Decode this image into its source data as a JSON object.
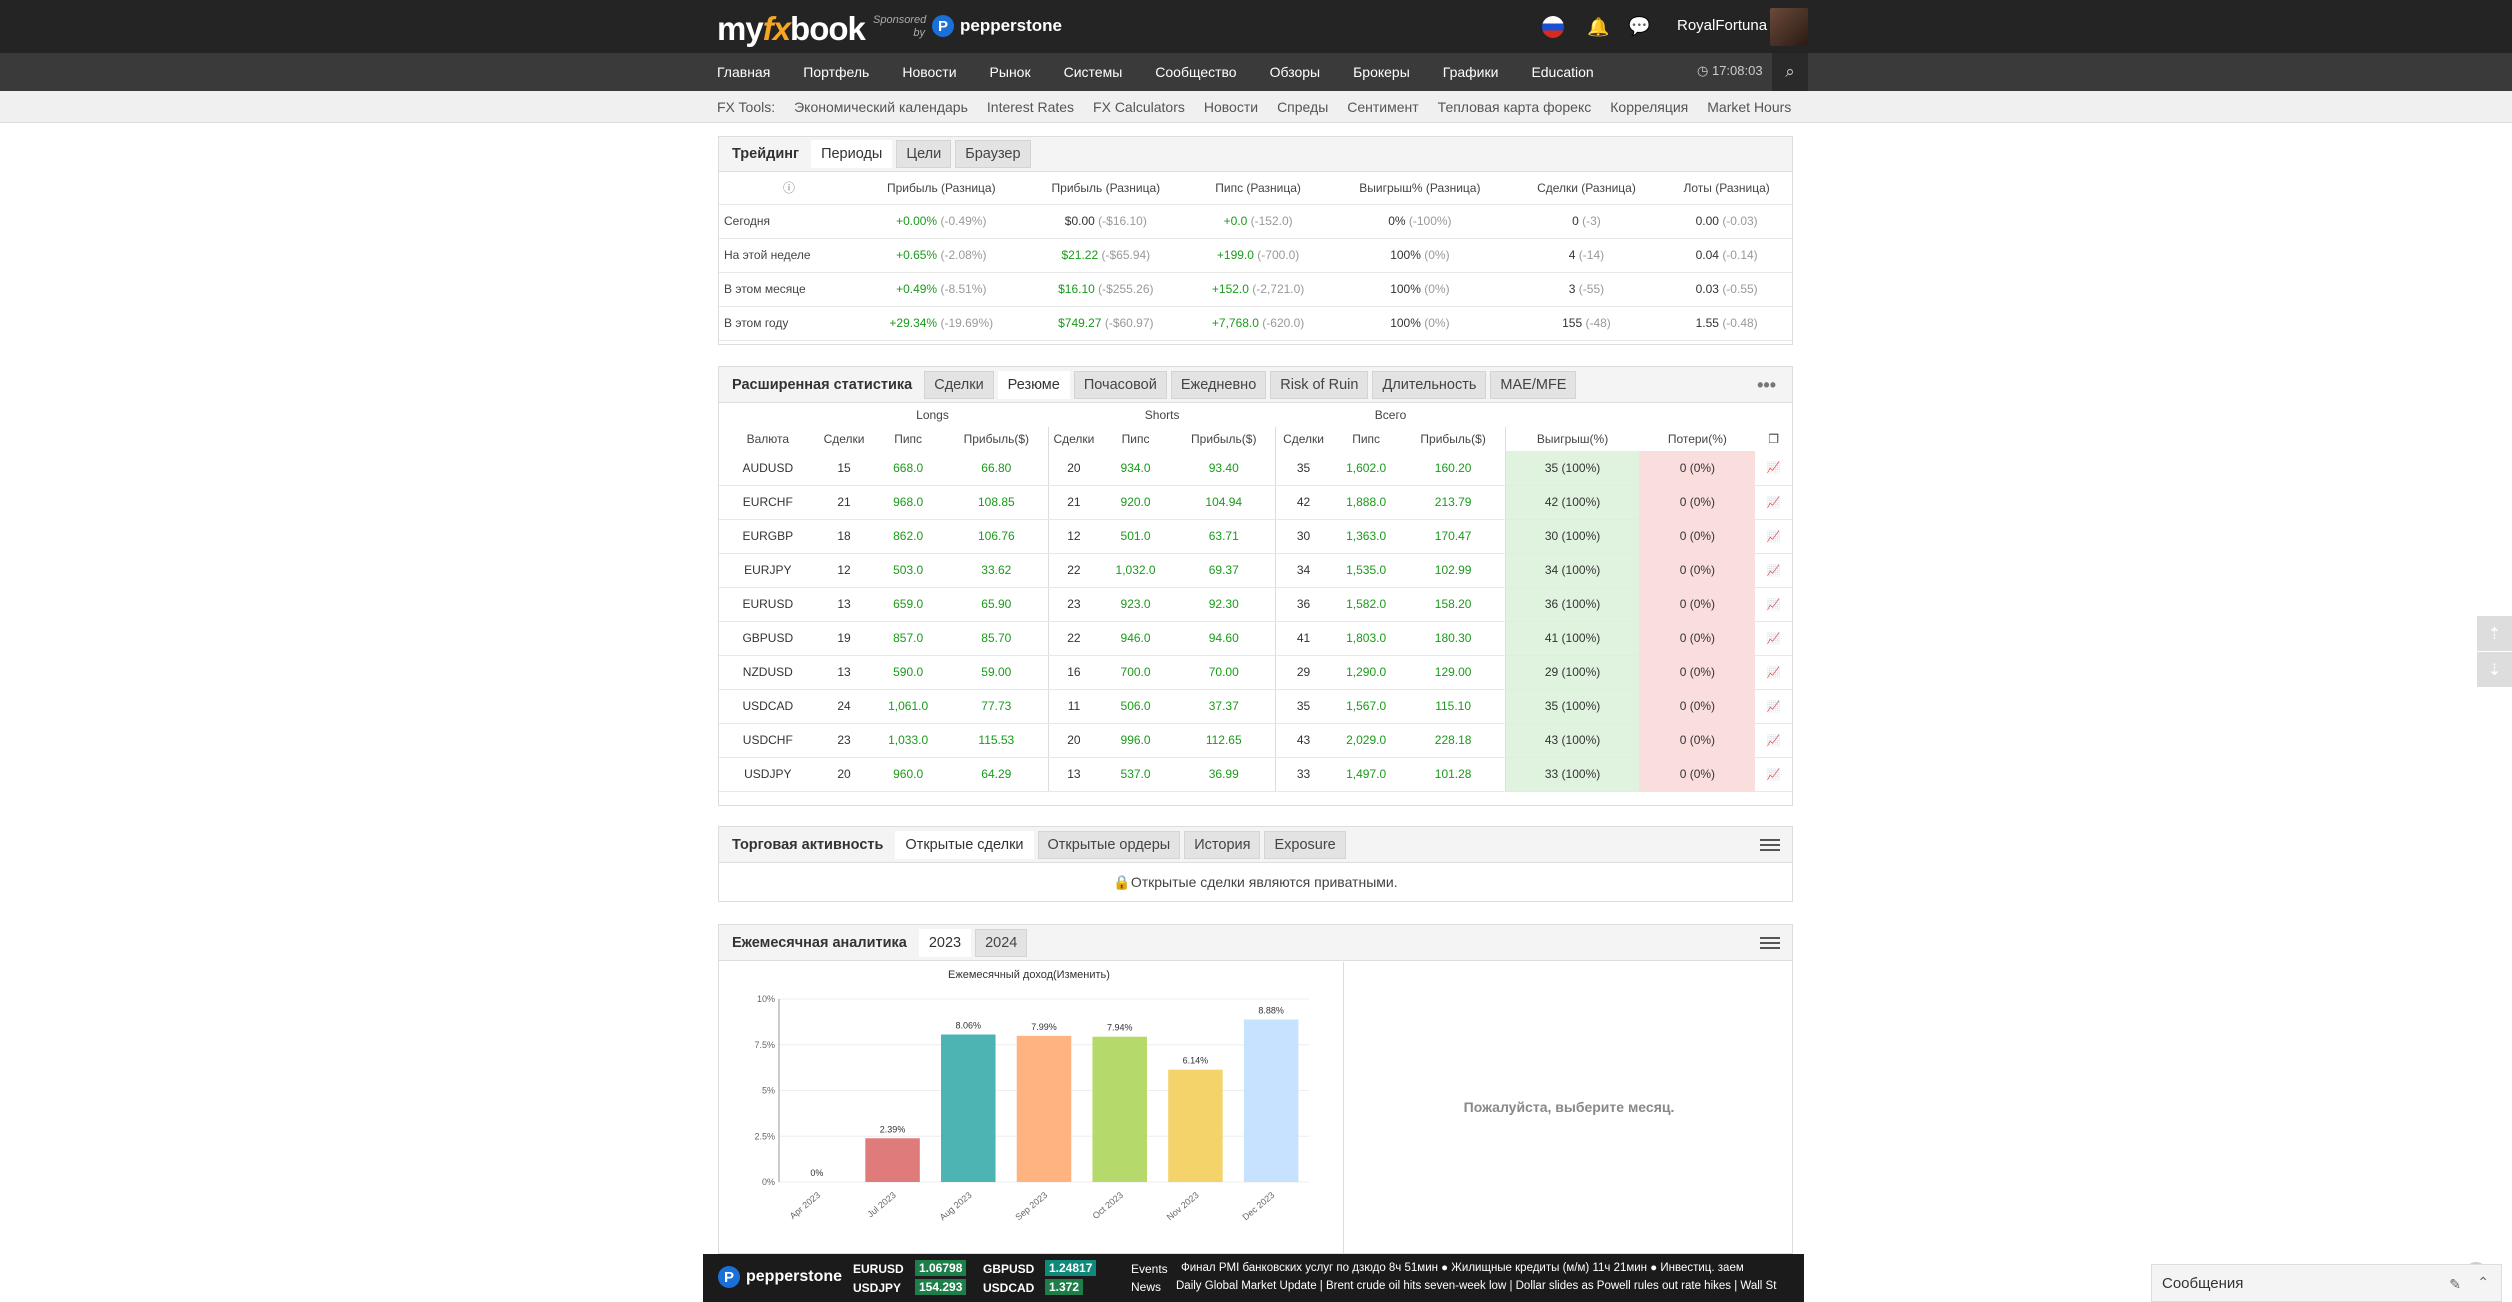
{
  "header": {
    "logo_my": "my",
    "logo_fx": "fx",
    "logo_book": "book",
    "sponsored": "Sponsored by",
    "sponsor": "pepperstone",
    "user": "RoyalFortuna",
    "clock": "17:08:03"
  },
  "nav": [
    "Главная",
    "Портфель",
    "Новости",
    "Рынок",
    "Системы",
    "Сообщество",
    "Обзоры",
    "Брокеры",
    "Графики",
    "Education"
  ],
  "tools": {
    "label": "FX Tools:",
    "items": [
      "Экономический календарь",
      "Interest Rates",
      "FX Calculators",
      "Новости",
      "Спреды",
      "Сентимент",
      "Тепловая карта форекс",
      "Корреляция",
      "Market Hours"
    ]
  },
  "trading": {
    "title": "Трейдинг",
    "tabs": [
      "Периоды",
      "Цели",
      "Браузер"
    ],
    "columns": [
      "Прибыль (Разница)",
      "Прибыль (Разница)",
      "Пипс (Разница)",
      "Выигрыш% (Разница)",
      "Сделки (Разница)",
      "Лоты (Разница)"
    ],
    "rows": [
      {
        "label": "Сегодня",
        "c": [
          [
            "+0.00%",
            "(-0.49%)"
          ],
          [
            "$0.00",
            "(-$16.10)"
          ],
          [
            "+0.0",
            "(-152.0)"
          ],
          [
            "0%",
            "(-100%)"
          ],
          [
            "0",
            "(-3)"
          ],
          [
            "0.00",
            "(-0.03)"
          ]
        ],
        "green": [
          1,
          0,
          1,
          0,
          0,
          0
        ]
      },
      {
        "label": "На этой неделе",
        "c": [
          [
            "+0.65%",
            "(-2.08%)"
          ],
          [
            "$21.22",
            "(-$65.94)"
          ],
          [
            "+199.0",
            "(-700.0)"
          ],
          [
            "100%",
            "(0%)"
          ],
          [
            "4",
            "(-14)"
          ],
          [
            "0.04",
            "(-0.14)"
          ]
        ],
        "green": [
          1,
          1,
          1,
          0,
          0,
          0
        ]
      },
      {
        "label": "В этом месяце",
        "c": [
          [
            "+0.49%",
            "(-8.51%)"
          ],
          [
            "$16.10",
            "(-$255.26)"
          ],
          [
            "+152.0",
            "(-2,721.0)"
          ],
          [
            "100%",
            "(0%)"
          ],
          [
            "3",
            "(-55)"
          ],
          [
            "0.03",
            "(-0.55)"
          ]
        ],
        "green": [
          1,
          1,
          1,
          0,
          0,
          0
        ]
      },
      {
        "label": "В этом году",
        "c": [
          [
            "+29.34%",
            "(-19.69%)"
          ],
          [
            "$749.27",
            "(-$60.97)"
          ],
          [
            "+7,768.0",
            "(-620.0)"
          ],
          [
            "100%",
            "(0%)"
          ],
          [
            "155",
            "(-48)"
          ],
          [
            "1.55",
            "(-0.48)"
          ]
        ],
        "green": [
          1,
          1,
          1,
          0,
          0,
          0
        ]
      }
    ]
  },
  "extended": {
    "title": "Расширенная статистика",
    "tabs": [
      "Сделки",
      "Резюме",
      "Почасовой",
      "Ежедневно",
      "Risk of Ruin",
      "Длительность",
      "MAE/MFE"
    ],
    "active_tab": "Резюме",
    "groups": [
      "Longs",
      "Shorts",
      "Всего"
    ],
    "headers": [
      "Валюта",
      "Сделки",
      "Пипс",
      "Прибыль($)",
      "Сделки",
      "Пипс",
      "Прибыль($)",
      "Сделки",
      "Пипс",
      "Прибыль($)",
      "Выигрыш(%)",
      "Потери(%)"
    ],
    "rows": [
      [
        "AUDUSD",
        "15",
        "668.0",
        "66.80",
        "20",
        "934.0",
        "93.40",
        "35",
        "1,602.0",
        "160.20",
        "35 (100%)",
        "0 (0%)"
      ],
      [
        "EURCHF",
        "21",
        "968.0",
        "108.85",
        "21",
        "920.0",
        "104.94",
        "42",
        "1,888.0",
        "213.79",
        "42 (100%)",
        "0 (0%)"
      ],
      [
        "EURGBP",
        "18",
        "862.0",
        "106.76",
        "12",
        "501.0",
        "63.71",
        "30",
        "1,363.0",
        "170.47",
        "30 (100%)",
        "0 (0%)"
      ],
      [
        "EURJPY",
        "12",
        "503.0",
        "33.62",
        "22",
        "1,032.0",
        "69.37",
        "34",
        "1,535.0",
        "102.99",
        "34 (100%)",
        "0 (0%)"
      ],
      [
        "EURUSD",
        "13",
        "659.0",
        "65.90",
        "23",
        "923.0",
        "92.30",
        "36",
        "1,582.0",
        "158.20",
        "36 (100%)",
        "0 (0%)"
      ],
      [
        "GBPUSD",
        "19",
        "857.0",
        "85.70",
        "22",
        "946.0",
        "94.60",
        "41",
        "1,803.0",
        "180.30",
        "41 (100%)",
        "0 (0%)"
      ],
      [
        "NZDUSD",
        "13",
        "590.0",
        "59.00",
        "16",
        "700.0",
        "70.00",
        "29",
        "1,290.0",
        "129.00",
        "29 (100%)",
        "0 (0%)"
      ],
      [
        "USDCAD",
        "24",
        "1,061.0",
        "77.73",
        "11",
        "506.0",
        "37.37",
        "35",
        "1,567.0",
        "115.10",
        "35 (100%)",
        "0 (0%)"
      ],
      [
        "USDCHF",
        "23",
        "1,033.0",
        "115.53",
        "20",
        "996.0",
        "112.65",
        "43",
        "2,029.0",
        "228.18",
        "43 (100%)",
        "0 (0%)"
      ],
      [
        "USDJPY",
        "20",
        "960.0",
        "64.29",
        "13",
        "537.0",
        "36.99",
        "33",
        "1,497.0",
        "101.28",
        "33 (100%)",
        "0 (0%)"
      ]
    ]
  },
  "activity": {
    "title": "Торговая активность",
    "tabs": [
      "Открытые сделки",
      "Открытые ордеры",
      "История",
      "Exposure"
    ],
    "private": "Открытые сделки являются приватными."
  },
  "monthly": {
    "title": "Ежемесячная аналитика",
    "tabs": [
      "2023",
      "2024"
    ],
    "select_msg": "Пожалуйста, выберите месяц."
  },
  "chart_data": {
    "type": "bar",
    "title": "Ежемесячный доход(Изменить)",
    "categories": [
      "Apr 2023",
      "Jul 2023",
      "Aug 2023",
      "Sep 2023",
      "Oct 2023",
      "Nov 2023",
      "Dec 2023"
    ],
    "values": [
      0,
      2.39,
      8.06,
      7.99,
      7.94,
      6.14,
      8.88
    ],
    "labels": [
      "0%",
      "2.39%",
      "8.06%",
      "7.99%",
      "7.94%",
      "6.14%",
      "8.88%"
    ],
    "colors": [
      "#e07b7b",
      "#e07b7b",
      "#4db3b3",
      "#ffb380",
      "#b5d96a",
      "#f5d36b",
      "#c6e2ff"
    ],
    "yticks": [
      "0%",
      "2.5%",
      "5%",
      "7.5%",
      "10%"
    ],
    "ylim": [
      0,
      10
    ]
  },
  "ticker": {
    "brand": "pepperstone",
    "pairs": [
      {
        "name": "EURUSD",
        "val": "1.06798"
      },
      {
        "name": "GBPUSD",
        "val": "1.24817"
      },
      {
        "name": "USDJPY",
        "val": "154.293"
      },
      {
        "name": "USDCAD",
        "val": "1.372"
      }
    ],
    "events_label": "Events",
    "news_label": "News",
    "events_text": "Финал PMI банковских услуг по дзюдо  8ч 51мин  ● Жилищные кредиты (м/м)  11ч 21мин  ● Инвестиц. заем",
    "news_text": "Daily Global Market Update | Brent crude oil hits seven-week low | Dollar slides as Powell rules out rate hikes | Wall St"
  },
  "messages": {
    "label": "Сообщения"
  }
}
